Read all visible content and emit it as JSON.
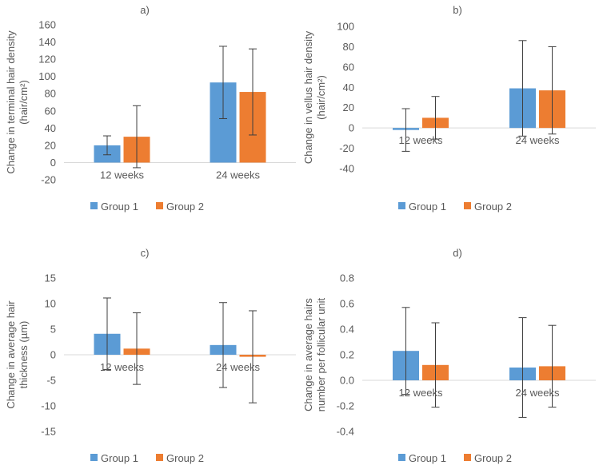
{
  "colors": {
    "group1": "#5b9bd5",
    "group2": "#ed7d31",
    "axis": "#d9d9d9",
    "errorbar": "#3f3f3f"
  },
  "chart_data": [
    {
      "type": "bar",
      "title": "a)",
      "ylabel_lines": [
        "Change in terminal hair density",
        "(hair/cm²)"
      ],
      "ylim": [
        -20,
        160
      ],
      "ytick_step": 20,
      "categories": [
        "12 weeks",
        "24 weeks"
      ],
      "series": [
        {
          "name": "Group 1",
          "values": [
            20,
            93
          ],
          "err_low": [
            11,
            42
          ],
          "err_high": [
            11,
            42
          ]
        },
        {
          "name": "Group 2",
          "values": [
            30,
            82
          ],
          "err_low": [
            36,
            50
          ],
          "err_high": [
            36,
            50
          ]
        }
      ],
      "legend": [
        "Group 1",
        "Group 2"
      ]
    },
    {
      "type": "bar",
      "title": "b)",
      "ylabel_lines": [
        "Change in vellus hair density",
        "(hair/cm²)"
      ],
      "ylim": [
        -40,
        100
      ],
      "ytick_step": 20,
      "categories": [
        "12 weeks",
        "24 weeks"
      ],
      "series": [
        {
          "name": "Group 1",
          "values": [
            -2,
            39
          ],
          "err_low": [
            21,
            47
          ],
          "err_high": [
            21,
            47
          ]
        },
        {
          "name": "Group 2",
          "values": [
            10,
            37
          ],
          "err_low": [
            21,
            43
          ],
          "err_high": [
            21,
            43
          ]
        }
      ],
      "legend": [
        "Group 1",
        "Group 2"
      ]
    },
    {
      "type": "bar",
      "title": "c)",
      "ylabel_lines": [
        "Change in average hair",
        "thickness (µm)"
      ],
      "ylim": [
        -15,
        15
      ],
      "ytick_step": 5,
      "categories": [
        "12 weeks",
        "24 weeks"
      ],
      "series": [
        {
          "name": "Group 1",
          "values": [
            4.1,
            1.9
          ],
          "err_low": [
            7,
            8.3
          ],
          "err_high": [
            7,
            8.3
          ]
        },
        {
          "name": "Group 2",
          "values": [
            1.2,
            -0.4
          ],
          "err_low": [
            7,
            9
          ],
          "err_high": [
            7,
            9
          ]
        }
      ],
      "legend": [
        "Group 1",
        "Group 2"
      ]
    },
    {
      "type": "bar",
      "title": "d)",
      "ylabel_lines": [
        "Change in average hairs",
        "number per follicular unit"
      ],
      "ylim": [
        -0.4,
        0.8
      ],
      "ytick_step": 0.2,
      "tick_decimals": 1,
      "categories": [
        "12 weeks",
        "24 weeks"
      ],
      "series": [
        {
          "name": "Group 1",
          "values": [
            0.23,
            0.1
          ],
          "err_low": [
            0.34,
            0.39
          ],
          "err_high": [
            0.34,
            0.39
          ]
        },
        {
          "name": "Group 2",
          "values": [
            0.12,
            0.11
          ],
          "err_low": [
            0.33,
            0.32
          ],
          "err_high": [
            0.33,
            0.32
          ]
        }
      ],
      "legend": [
        "Group 1",
        "Group 2"
      ]
    }
  ]
}
